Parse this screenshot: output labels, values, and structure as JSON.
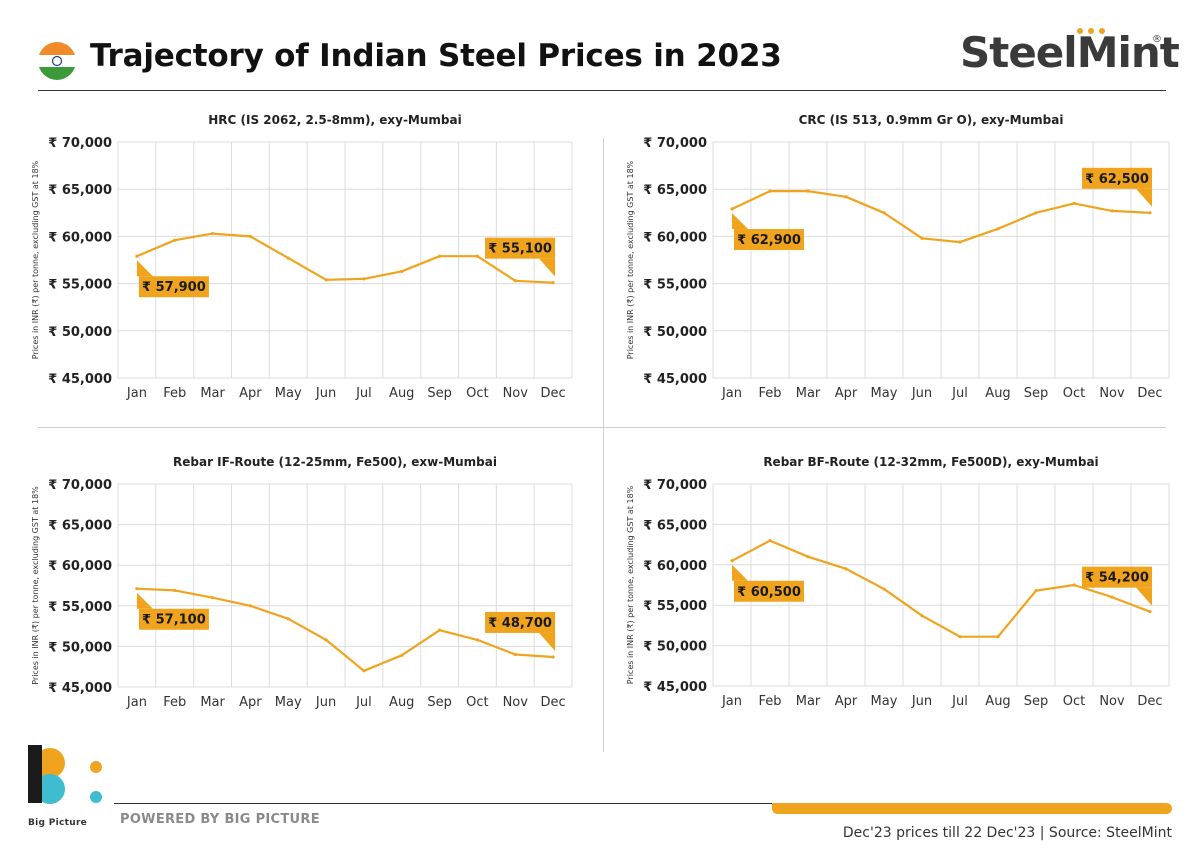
{
  "header": {
    "title": "Trajectory of Indian Steel Prices in 2023",
    "brand": "SteelMint",
    "brand_mark": "®"
  },
  "colors": {
    "line": "#f0a41e",
    "grid": "#dcdcdc",
    "label_bg": "#f0a41e",
    "text": "#222222"
  },
  "footer": {
    "powered_by": "POWERED BY BIG PICTURE",
    "bp_caption": "Big Picture",
    "note": "Dec'23 prices till 22 Dec'23 | Source: SteelMint"
  },
  "chart_data": [
    {
      "type": "line",
      "title": "HRC (IS 2062, 2.5-8mm), exy-Mumbai",
      "ylabel": "Prices in INR (₹) per tonne, excluding GST at 18%",
      "categories": [
        "Jan",
        "Feb",
        "Mar",
        "Apr",
        "May",
        "Jun",
        "Jul",
        "Aug",
        "Sep",
        "Oct",
        "Nov",
        "Dec"
      ],
      "values": [
        57900,
        59600,
        60300,
        60000,
        57700,
        55400,
        55500,
        56300,
        57900,
        57900,
        55300,
        55100
      ],
      "ylim": [
        45000,
        70000
      ],
      "yticks": [
        "₹ 45,000",
        "₹ 50,000",
        "₹ 55,000",
        "₹ 60,000",
        "₹ 65,000",
        "₹ 70,000"
      ],
      "start_label": "₹ 57,900",
      "end_label": "₹ 55,100"
    },
    {
      "type": "line",
      "title": "CRC (IS 513, 0.9mm Gr O), exy-Mumbai",
      "ylabel": "Prices in INR (₹) per tonne, excluding GST at 18%",
      "categories": [
        "Jan",
        "Feb",
        "Mar",
        "Apr",
        "May",
        "Jun",
        "Jul",
        "Aug",
        "Sep",
        "Oct",
        "Nov",
        "Dec"
      ],
      "values": [
        62900,
        64800,
        64800,
        64200,
        62500,
        59800,
        59400,
        60800,
        62500,
        63500,
        62700,
        62500
      ],
      "ylim": [
        45000,
        70000
      ],
      "yticks": [
        "₹ 45,000",
        "₹ 50,000",
        "₹ 55,000",
        "₹ 60,000",
        "₹ 65,000",
        "₹ 70,000"
      ],
      "start_label": "₹ 62,900",
      "end_label": "₹ 62,500"
    },
    {
      "type": "line",
      "title": "Rebar IF-Route (12-25mm, Fe500), exw-Mumbai",
      "ylabel": "Prices in INR (₹) per tonne, excluding GST at 18%",
      "categories": [
        "Jan",
        "Feb",
        "Mar",
        "Apr",
        "May",
        "Jun",
        "Jul",
        "Aug",
        "Sep",
        "Oct",
        "Nov",
        "Dec"
      ],
      "values": [
        57100,
        56900,
        56000,
        55000,
        53400,
        50800,
        47000,
        48900,
        52000,
        50800,
        49000,
        48700
      ],
      "ylim": [
        45000,
        70000
      ],
      "yticks": [
        "₹ 45,000",
        "₹ 50,000",
        "₹ 55,000",
        "₹ 60,000",
        "₹ 65,000",
        "₹ 70,000"
      ],
      "start_label": "₹ 57,100",
      "end_label": "₹ 48,700"
    },
    {
      "type": "line",
      "title": "Rebar BF-Route (12-32mm, Fe500D), exy-Mumbai",
      "ylabel": "Prices in INR (₹) per tonne, excluding GST at 18%",
      "categories": [
        "Jan",
        "Feb",
        "Mar",
        "Apr",
        "May",
        "Jun",
        "Jul",
        "Aug",
        "Sep",
        "Oct",
        "Nov",
        "Dec"
      ],
      "values": [
        60500,
        63000,
        61000,
        59500,
        57000,
        53700,
        51100,
        51100,
        56800,
        57500,
        56000,
        54200
      ],
      "ylim": [
        45000,
        70000
      ],
      "yticks": [
        "₹ 45,000",
        "₹ 50,000",
        "₹ 55,000",
        "₹ 60,000",
        "₹ 65,000",
        "₹ 70,000"
      ],
      "start_label": "₹ 60,500",
      "end_label": "₹ 54,200"
    }
  ]
}
